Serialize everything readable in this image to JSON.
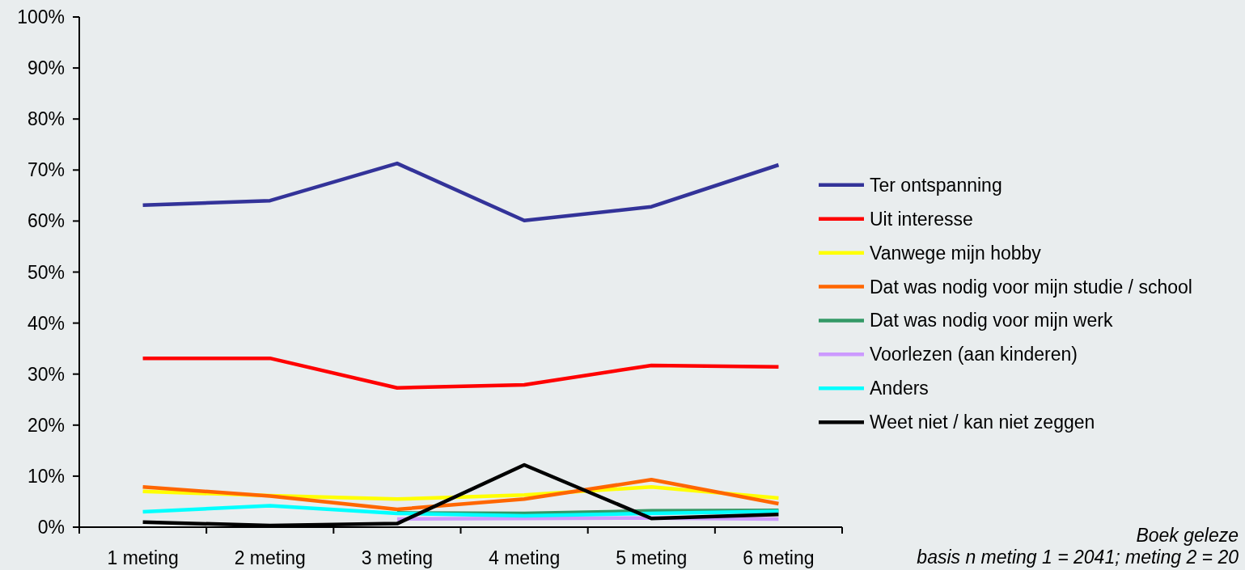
{
  "chart_data": {
    "type": "line",
    "categories": [
      "1 meting",
      "2 meting",
      "3 meting",
      "4 meting",
      "5 meting",
      "6 meting"
    ],
    "ylim": [
      0,
      100
    ],
    "yticks": [
      {
        "value": 0,
        "label": "0%"
      },
      {
        "value": 10,
        "label": "10%"
      },
      {
        "value": 20,
        "label": "20%"
      },
      {
        "value": 30,
        "label": "30%"
      },
      {
        "value": 40,
        "label": "40%"
      },
      {
        "value": 50,
        "label": "50%"
      },
      {
        "value": 60,
        "label": "60%"
      },
      {
        "value": 70,
        "label": "70%"
      },
      {
        "value": 80,
        "label": "80%"
      },
      {
        "value": 90,
        "label": "90%"
      },
      {
        "value": 100,
        "label": "100%"
      }
    ],
    "grid": false,
    "legend": "right",
    "line_style": "solid",
    "annotations": [
      "Boek geleze",
      "basis n meting 1 = 2041; meting 2 = 20"
    ],
    "series": [
      {
        "name": "Ter ontspanning",
        "color": "#333399",
        "values": [
          63.1,
          64.0,
          71.3,
          60.1,
          62.8,
          71.0
        ]
      },
      {
        "name": "Uit interesse",
        "color": "#ff0000",
        "values": [
          33.1,
          33.1,
          27.3,
          27.9,
          31.7,
          31.4
        ]
      },
      {
        "name": "Vanwege mijn hobby",
        "color": "#ffff00",
        "values": [
          7.0,
          6.2,
          5.5,
          6.3,
          7.9,
          5.7
        ]
      },
      {
        "name": "Dat was nodig voor mijn studie / school",
        "color": "#ff6600",
        "values": [
          7.9,
          6.1,
          3.5,
          5.5,
          9.3,
          4.6
        ]
      },
      {
        "name": "Dat was nodig voor mijn werk",
        "color": "#339966",
        "values": [
          null,
          null,
          2.8,
          2.7,
          3.2,
          3.3
        ]
      },
      {
        "name": "Voorlezen (aan kinderen)",
        "color": "#cc99ff",
        "values": [
          null,
          null,
          1.6,
          1.7,
          1.8,
          1.6
        ]
      },
      {
        "name": "Anders",
        "color": "#00ffff",
        "values": [
          3.0,
          4.2,
          2.7,
          2.2,
          2.7,
          3.1
        ]
      },
      {
        "name": "Weet niet / kan niet zeggen",
        "color": "#000000",
        "values": [
          1.0,
          0.3,
          0.7,
          12.2,
          1.7,
          2.5
        ]
      }
    ]
  }
}
